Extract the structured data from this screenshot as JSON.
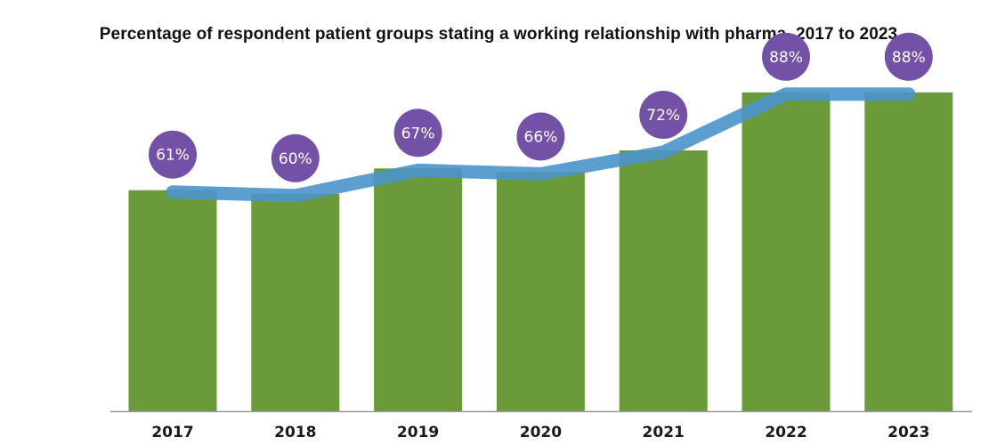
{
  "chart_data": {
    "type": "bar",
    "title": "Percentage of respondent patient groups stating a working relationship with pharma, 2017 to 2023",
    "categories": [
      "2017",
      "2018",
      "2019",
      "2020",
      "2021",
      "2022",
      "2023"
    ],
    "values": [
      61,
      60,
      67,
      66,
      72,
      88,
      88
    ],
    "data_labels": [
      "61%",
      "60%",
      "67%",
      "66%",
      "72%",
      "88%",
      "88%"
    ],
    "overlay": "line",
    "ylim": [
      0,
      100
    ],
    "grid": false,
    "legend": "none",
    "colors": {
      "bar": "#6a9a3a",
      "line": "#4b94cb",
      "bubble": "#7351a6",
      "axis": "#9a9a9a"
    }
  }
}
